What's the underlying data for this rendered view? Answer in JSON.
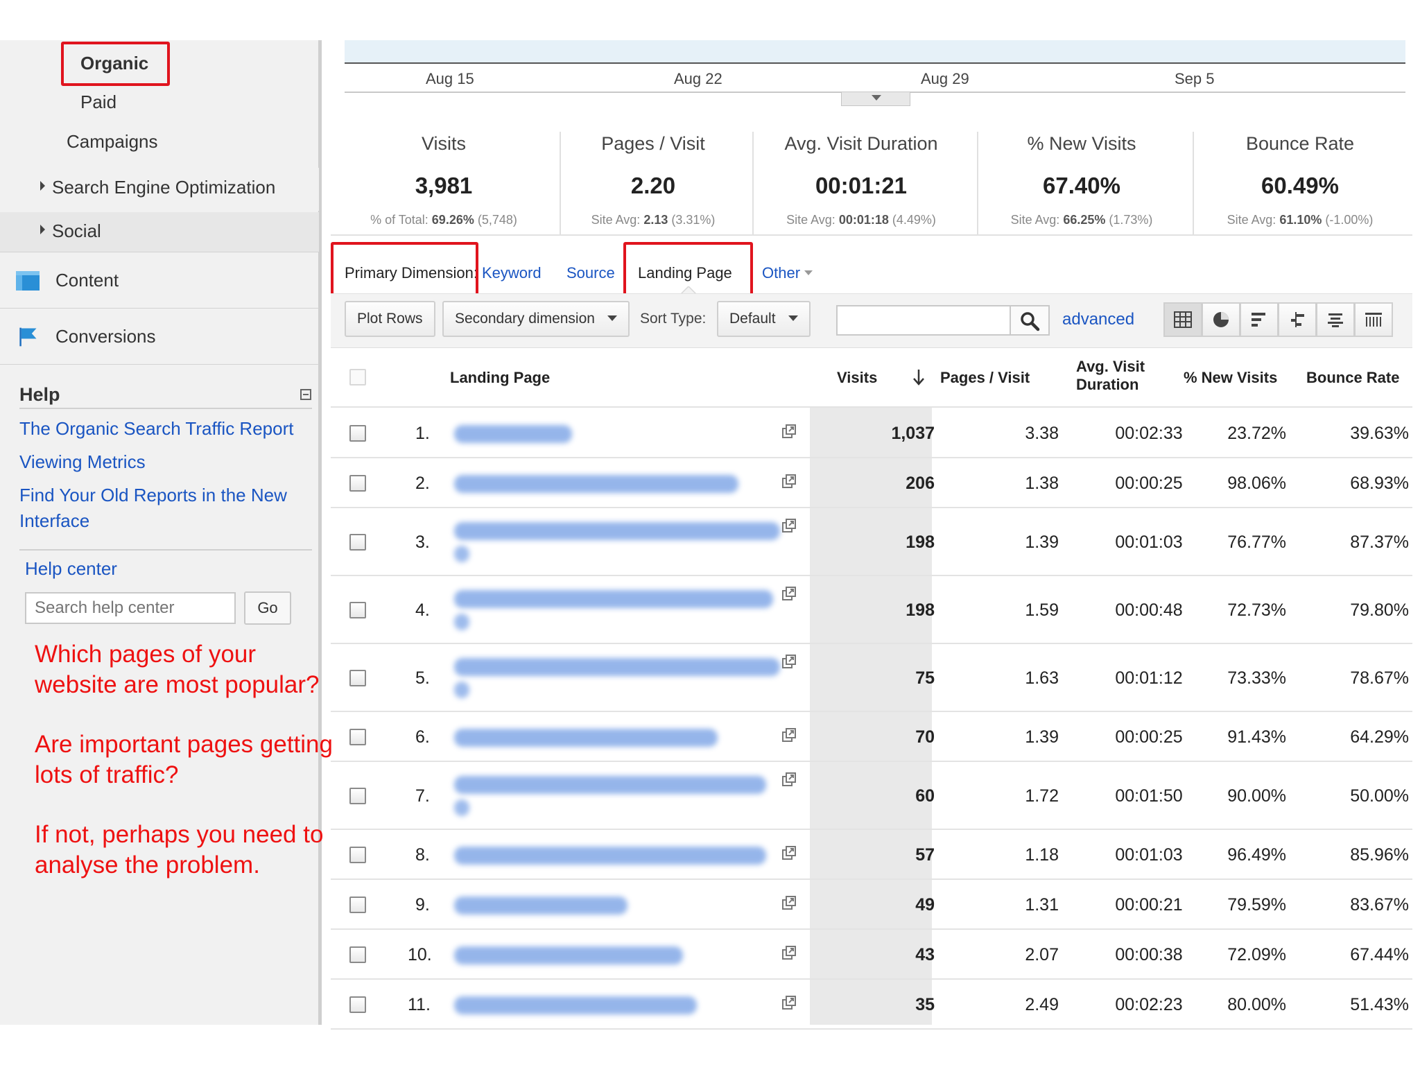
{
  "sidebar": {
    "organic": "Organic",
    "paid": "Paid",
    "campaigns": "Campaigns",
    "seo": "Search Engine Optimization",
    "social": "Social",
    "content": "Content",
    "conversions": "Conversions"
  },
  "help": {
    "title": "Help",
    "links": [
      "The Organic Search Traffic Report",
      "Viewing Metrics",
      "Find Your Old Reports in the New Interface"
    ],
    "help_center": "Help center",
    "search_placeholder": "Search help center",
    "go_label": "Go"
  },
  "annotations": [
    "Which pages of your website are most popular?",
    "Are important pages getting lots of traffic?",
    "If not, perhaps you need to analyse the problem."
  ],
  "timeline": {
    "dates": [
      "Aug 15",
      "Aug 22",
      "Aug 29",
      "Sep 5"
    ]
  },
  "metrics": [
    {
      "label": "Visits",
      "value": "3,981",
      "sub_prefix": "% of Total: ",
      "sub_bold": "69.26%",
      "sub_suffix": " (5,748)"
    },
    {
      "label": "Pages / Visit",
      "value": "2.20",
      "sub_prefix": "Site Avg: ",
      "sub_bold": "2.13",
      "sub_suffix": " (3.31%)"
    },
    {
      "label": "Avg. Visit Duration",
      "value": "00:01:21",
      "sub_prefix": "Site Avg: ",
      "sub_bold": "00:01:18",
      "sub_suffix": " (4.49%)"
    },
    {
      "label": "% New Visits",
      "value": "67.40%",
      "sub_prefix": "Site Avg: ",
      "sub_bold": "66.25%",
      "sub_suffix": " (1.73%)"
    },
    {
      "label": "Bounce Rate",
      "value": "60.49%",
      "sub_prefix": "Site Avg: ",
      "sub_bold": "61.10%",
      "sub_suffix": " (-1.00%)"
    }
  ],
  "primary_dimension": {
    "label": "Primary Dimension:",
    "keyword": "Keyword",
    "source": "Source",
    "landing_page": "Landing Page",
    "other": "Other"
  },
  "toolbar": {
    "plot_rows": "Plot Rows",
    "secondary_dimension": "Secondary dimension",
    "sort_type_label": "Sort Type:",
    "sort_type_value": "Default",
    "advanced": "advanced"
  },
  "table": {
    "headers": {
      "landing_page": "Landing Page",
      "visits": "Visits",
      "pages_visit": "Pages / Visit",
      "avg_duration_1": "Avg. Visit",
      "avg_duration_2": "Duration",
      "new_visits": "% New Visits",
      "bounce_rate": "Bounce Rate"
    },
    "rows": [
      {
        "n": "1.",
        "visits": "1,037",
        "pages": "3.38",
        "duration": "00:02:33",
        "new": "23.72%",
        "bounce": "39.63%"
      },
      {
        "n": "2.",
        "visits": "206",
        "pages": "1.38",
        "duration": "00:00:25",
        "new": "98.06%",
        "bounce": "68.93%"
      },
      {
        "n": "3.",
        "visits": "198",
        "pages": "1.39",
        "duration": "00:01:03",
        "new": "76.77%",
        "bounce": "87.37%"
      },
      {
        "n": "4.",
        "visits": "198",
        "pages": "1.59",
        "duration": "00:00:48",
        "new": "72.73%",
        "bounce": "79.80%"
      },
      {
        "n": "5.",
        "visits": "75",
        "pages": "1.63",
        "duration": "00:01:12",
        "new": "73.33%",
        "bounce": "78.67%"
      },
      {
        "n": "6.",
        "visits": "70",
        "pages": "1.39",
        "duration": "00:00:25",
        "new": "91.43%",
        "bounce": "64.29%"
      },
      {
        "n": "7.",
        "visits": "60",
        "pages": "1.72",
        "duration": "00:01:50",
        "new": "90.00%",
        "bounce": "50.00%"
      },
      {
        "n": "8.",
        "visits": "57",
        "pages": "1.18",
        "duration": "00:01:03",
        "new": "96.49%",
        "bounce": "85.96%"
      },
      {
        "n": "9.",
        "visits": "49",
        "pages": "1.31",
        "duration": "00:00:21",
        "new": "79.59%",
        "bounce": "83.67%"
      },
      {
        "n": "10.",
        "visits": "43",
        "pages": "2.07",
        "duration": "00:00:38",
        "new": "72.09%",
        "bounce": "67.44%"
      },
      {
        "n": "11.",
        "visits": "35",
        "pages": "2.49",
        "duration": "00:02:23",
        "new": "80.00%",
        "bounce": "51.43%"
      }
    ]
  },
  "colors": {
    "highlight": "#e0141e",
    "link": "#1a55c2",
    "annotation": "#ee1111"
  }
}
